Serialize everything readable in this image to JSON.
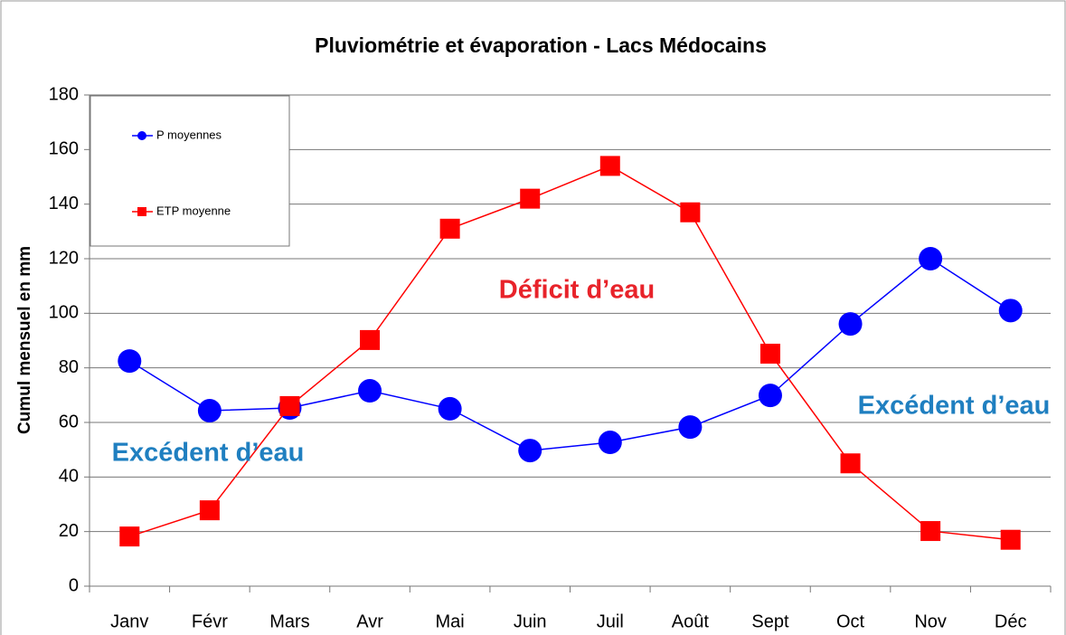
{
  "chart_data": {
    "type": "line",
    "title": "Pluviométrie et évaporation -  Lacs Médocains",
    "y_label": "Cumul mensuel en mm",
    "categories": [
      "Janv",
      "Févr",
      "Mars",
      "Avr",
      "Mai",
      "Juin",
      "Juil",
      "Août",
      "Sept",
      "Oct",
      "Nov",
      "Déc"
    ],
    "series": [
      {
        "name": "P moyennes",
        "color": "#0000ff",
        "marker": "circle",
        "values": [
          82.5,
          64.3,
          65.3,
          71.6,
          65,
          49.7,
          52.7,
          58.3,
          69.9,
          96.1,
          120,
          101
        ]
      },
      {
        "name": "ETP moyenne",
        "color": "#ff0000",
        "marker": "square",
        "values": [
          18.2,
          27.8,
          66,
          90.2,
          131,
          142,
          154,
          137,
          85.2,
          45,
          20.2,
          17
        ]
      }
    ],
    "ylim": [
      0,
      180
    ],
    "yticks": [
      0,
      20,
      40,
      60,
      80,
      100,
      120,
      140,
      160,
      180
    ],
    "grid": true,
    "legend": "top-left",
    "annotations": [
      {
        "text": "Déficit d’eau",
        "color": "#e8232a"
      },
      {
        "text": "Excédent d’eau",
        "color": "#1f7fc0"
      },
      {
        "text": "Excédent d’eau",
        "color": "#1f7fc0"
      }
    ]
  }
}
